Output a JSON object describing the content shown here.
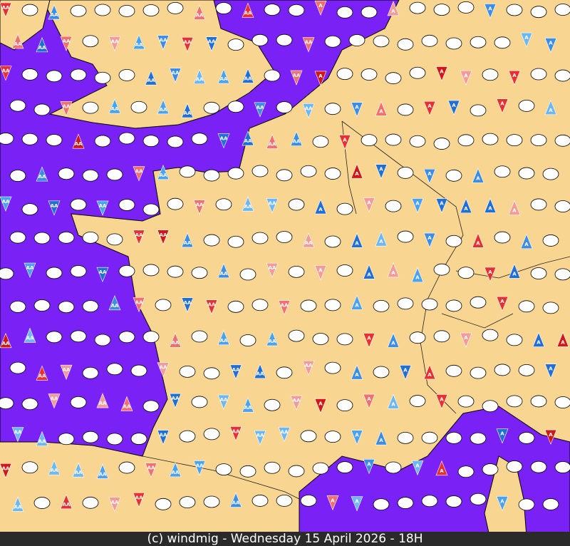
{
  "footer": {
    "text": "(c) windmig - Wednesday 15 April 2026 - 18H"
  },
  "symbols": {
    "double": "AA",
    "single": "A"
  }
}
